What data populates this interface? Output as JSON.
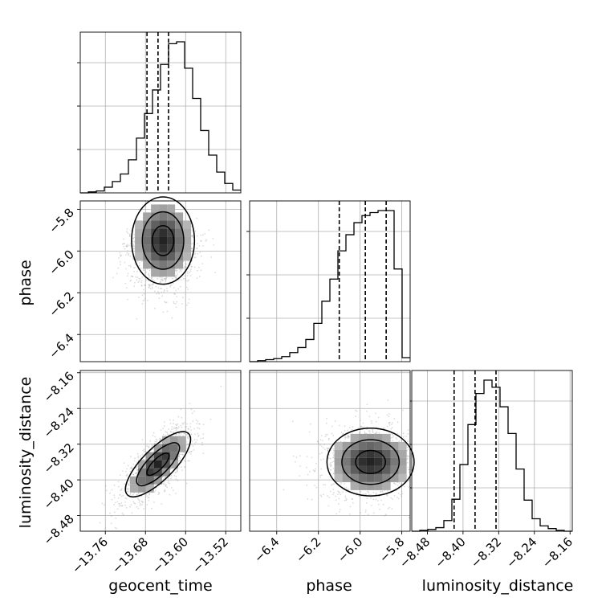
{
  "chart_data": {
    "type": "corner",
    "parameters": [
      "geocent_time",
      "phase",
      "luminosity_distance"
    ],
    "ranges": {
      "geocent_time": [
        -13.81,
        -13.49
      ],
      "phase": [
        -6.53,
        -5.76
      ],
      "luminosity_distance": [
        -8.515,
        -8.155
      ]
    },
    "ticks": {
      "geocent_time": [
        -13.76,
        -13.68,
        -13.6,
        -13.52
      ],
      "phase": [
        -6.4,
        -6.2,
        -6.0,
        -5.8
      ],
      "luminosity_distance": [
        -8.48,
        -8.4,
        -8.32,
        -8.24,
        -8.16
      ]
    },
    "tick_labels": {
      "geocent_time": [
        "−13.76",
        "−13.68",
        "−13.60",
        "−13.52"
      ],
      "phase": [
        "−6.4",
        "−6.2",
        "−6.0",
        "−5.8"
      ],
      "luminosity_distance": [
        "−8.48",
        "−8.40",
        "−8.32",
        "−8.24",
        "−8.16"
      ]
    },
    "quantiles": {
      "geocent_time": [
        -13.677,
        -13.655,
        -13.634
      ],
      "phase": [
        -6.1,
        -5.975,
        -5.875
      ],
      "luminosity_distance": [
        -8.42,
        -8.373,
        -8.326
      ]
    },
    "histograms": [
      {
        "param": "geocent_time",
        "bins": 20,
        "counts": [
          0,
          1,
          2,
          6,
          12,
          20,
          35,
          58,
          84,
          109,
          136,
          158,
          160,
          132,
          100,
          66,
          40,
          22,
          10,
          3
        ]
      },
      {
        "param": "phase",
        "bins": 20,
        "counts": [
          0,
          1,
          2,
          3,
          5,
          9,
          14,
          22,
          38,
          60,
          82,
          110,
          126,
          138,
          145,
          148,
          150,
          150,
          92,
          4
        ]
      },
      {
        "param": "luminosity_distance",
        "bins": 20,
        "counts": [
          0,
          1,
          2,
          4,
          12,
          36,
          75,
          120,
          155,
          170,
          162,
          140,
          110,
          70,
          35,
          14,
          6,
          3,
          1,
          0
        ]
      }
    ],
    "joint_2d": [
      {
        "x": "geocent_time",
        "y": "phase",
        "peak": [
          -13.645,
          -5.95
        ],
        "correlation": 0.0
      },
      {
        "x": "geocent_time",
        "y": "luminosity_distance",
        "peak": [
          -13.655,
          -8.365
        ],
        "correlation": 0.75
      },
      {
        "x": "phase",
        "y": "luminosity_distance",
        "peak": [
          -5.95,
          -8.36
        ],
        "correlation": 0.0
      }
    ],
    "grid": true
  }
}
